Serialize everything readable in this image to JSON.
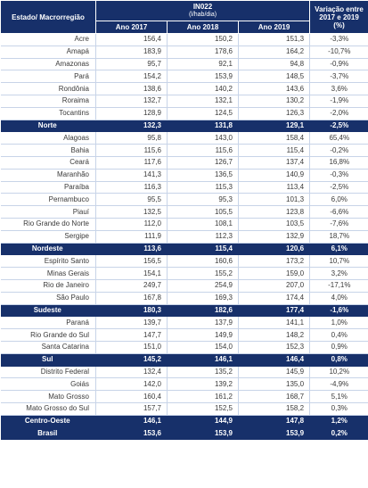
{
  "header": {
    "state_col": "Estado/ Macrorregião",
    "indicator": "IN022",
    "unit": "(l/hab/dia)",
    "years": [
      "Ano 2017",
      "Ano 2018",
      "Ano 2019"
    ],
    "variation": "Variação entre 2017 e 2019 (%)"
  },
  "rows": [
    {
      "name": "Acre",
      "v2017": "156,4",
      "v2018": "150,2",
      "v2019": "151,3",
      "var": "-3,3%",
      "region": false
    },
    {
      "name": "Amapá",
      "v2017": "183,9",
      "v2018": "178,6",
      "v2019": "164,2",
      "var": "-10,7%",
      "region": false
    },
    {
      "name": "Amazonas",
      "v2017": "95,7",
      "v2018": "92,1",
      "v2019": "94,8",
      "var": "-0,9%",
      "region": false
    },
    {
      "name": "Pará",
      "v2017": "154,2",
      "v2018": "153,9",
      "v2019": "148,5",
      "var": "-3,7%",
      "region": false
    },
    {
      "name": "Rondônia",
      "v2017": "138,6",
      "v2018": "140,2",
      "v2019": "143,6",
      "var": "3,6%",
      "region": false
    },
    {
      "name": "Roraima",
      "v2017": "132,7",
      "v2018": "132,1",
      "v2019": "130,2",
      "var": "-1,9%",
      "region": false
    },
    {
      "name": "Tocantins",
      "v2017": "128,9",
      "v2018": "124,5",
      "v2019": "126,3",
      "var": "-2,0%",
      "region": false
    },
    {
      "name": "Norte",
      "v2017": "132,3",
      "v2018": "131,8",
      "v2019": "129,1",
      "var": "-2,5%",
      "region": true
    },
    {
      "name": "Alagoas",
      "v2017": "95,8",
      "v2018": "143,0",
      "v2019": "158,4",
      "var": "65,4%",
      "region": false
    },
    {
      "name": "Bahia",
      "v2017": "115,6",
      "v2018": "115,6",
      "v2019": "115,4",
      "var": "-0,2%",
      "region": false
    },
    {
      "name": "Ceará",
      "v2017": "117,6",
      "v2018": "126,7",
      "v2019": "137,4",
      "var": "16,8%",
      "region": false
    },
    {
      "name": "Maranhão",
      "v2017": "141,3",
      "v2018": "136,5",
      "v2019": "140,9",
      "var": "-0,3%",
      "region": false
    },
    {
      "name": "Paraíba",
      "v2017": "116,3",
      "v2018": "115,3",
      "v2019": "113,4",
      "var": "-2,5%",
      "region": false
    },
    {
      "name": "Pernambuco",
      "v2017": "95,5",
      "v2018": "95,3",
      "v2019": "101,3",
      "var": "6,0%",
      "region": false
    },
    {
      "name": "Piauí",
      "v2017": "132,5",
      "v2018": "105,5",
      "v2019": "123,8",
      "var": "-6,6%",
      "region": false
    },
    {
      "name": "Rio Grande do Norte",
      "v2017": "112,0",
      "v2018": "108,1",
      "v2019": "103,5",
      "var": "-7,6%",
      "region": false
    },
    {
      "name": "Sergipe",
      "v2017": "111,9",
      "v2018": "112,3",
      "v2019": "132,9",
      "var": "18,7%",
      "region": false
    },
    {
      "name": "Nordeste",
      "v2017": "113,6",
      "v2018": "115,4",
      "v2019": "120,6",
      "var": "6,1%",
      "region": true
    },
    {
      "name": "Espírito Santo",
      "v2017": "156,5",
      "v2018": "160,6",
      "v2019": "173,2",
      "var": "10,7%",
      "region": false
    },
    {
      "name": "Minas Gerais",
      "v2017": "154,1",
      "v2018": "155,2",
      "v2019": "159,0",
      "var": "3,2%",
      "region": false
    },
    {
      "name": "Rio de Janeiro",
      "v2017": "249,7",
      "v2018": "254,9",
      "v2019": "207,0",
      "var": "-17,1%",
      "region": false
    },
    {
      "name": "São Paulo",
      "v2017": "167,8",
      "v2018": "169,3",
      "v2019": "174,4",
      "var": "4,0%",
      "region": false
    },
    {
      "name": "Sudeste",
      "v2017": "180,3",
      "v2018": "182,6",
      "v2019": "177,4",
      "var": "-1,6%",
      "region": true
    },
    {
      "name": "Paraná",
      "v2017": "139,7",
      "v2018": "137,9",
      "v2019": "141,1",
      "var": "1,0%",
      "region": false
    },
    {
      "name": "Rio Grande do Sul",
      "v2017": "147,7",
      "v2018": "149,9",
      "v2019": "148,2",
      "var": "0,4%",
      "region": false
    },
    {
      "name": "Santa Catarina",
      "v2017": "151,0",
      "v2018": "154,0",
      "v2019": "152,3",
      "var": "0,9%",
      "region": false
    },
    {
      "name": "Sul",
      "v2017": "145,2",
      "v2018": "146,1",
      "v2019": "146,4",
      "var": "0,8%",
      "region": true
    },
    {
      "name": "Distrito Federal",
      "v2017": "132,4",
      "v2018": "135,2",
      "v2019": "145,9",
      "var": "10,2%",
      "region": false
    },
    {
      "name": "Goiás",
      "v2017": "142,0",
      "v2018": "139,2",
      "v2019": "135,0",
      "var": "-4,9%",
      "region": false
    },
    {
      "name": "Mato Grosso",
      "v2017": "160,4",
      "v2018": "161,2",
      "v2019": "168,7",
      "var": "5,1%",
      "region": false
    },
    {
      "name": "Mato Grosso do Sul",
      "v2017": "157,7",
      "v2018": "152,5",
      "v2019": "158,2",
      "var": "0,3%",
      "region": false
    },
    {
      "name": "Centro-Oeste",
      "v2017": "146,1",
      "v2018": "144,9",
      "v2019": "147,8",
      "var": "1,2%",
      "region": true
    },
    {
      "name": "Brasil",
      "v2017": "153,6",
      "v2018": "153,9",
      "v2019": "153,9",
      "var": "0,2%",
      "region": true
    }
  ]
}
